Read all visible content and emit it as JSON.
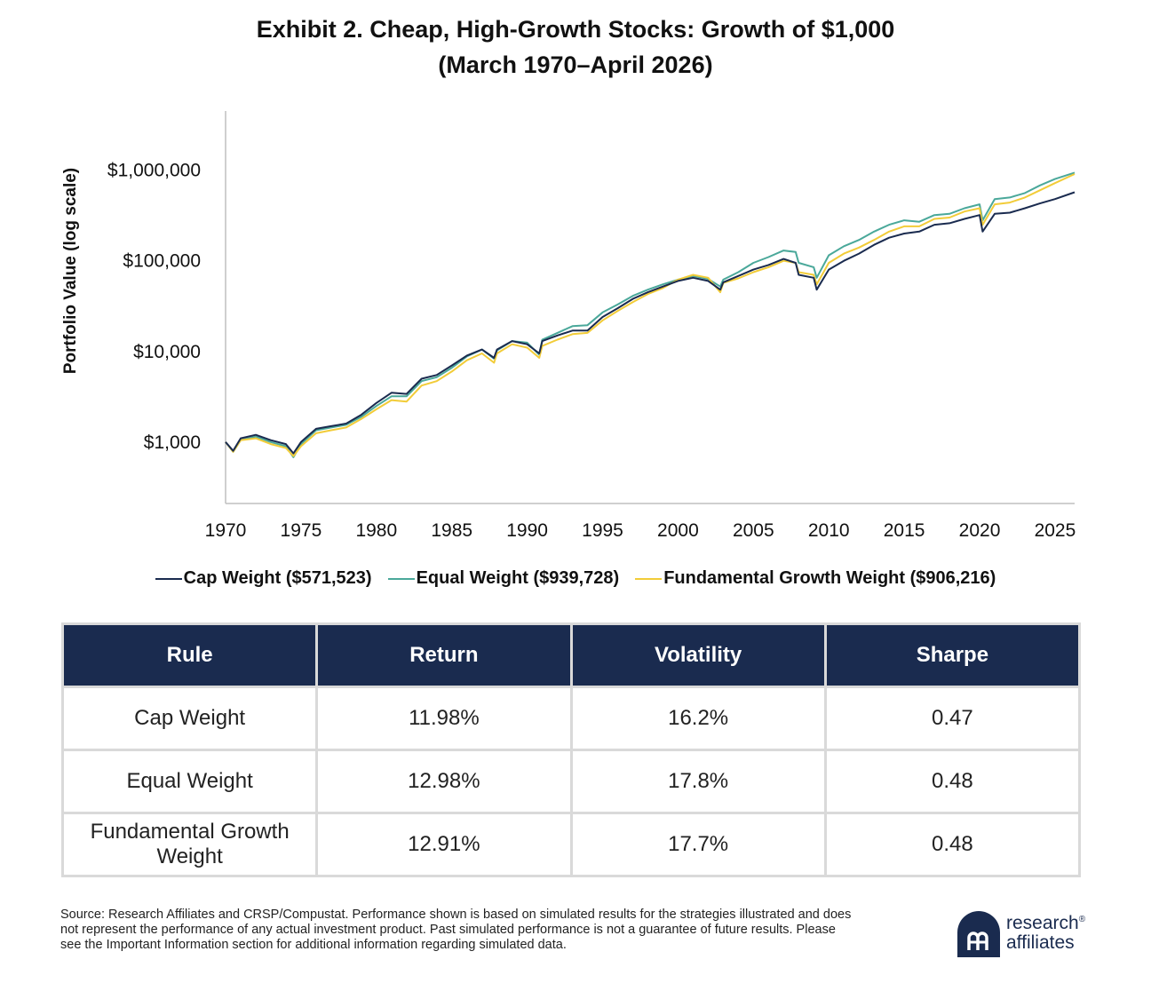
{
  "title_line1": "Exhibit 2. Cheap, High-Growth Stocks: Growth of $1,000",
  "title_line2": "(March 1970–April 2026)",
  "chart_data": {
    "type": "line",
    "title": "Exhibit 2. Cheap, High-Growth Stocks: Growth of $1,000 (March 1970–April 2026)",
    "xlabel": "",
    "ylabel": "Portfolio Value (log scale)",
    "yscale": "log",
    "ylim": [
      210,
      4500000
    ],
    "xlim": [
      1970,
      2026.3
    ],
    "x_ticks": [
      "1970",
      "1975",
      "1980",
      "1985",
      "1990",
      "1995",
      "2000",
      "2005",
      "2010",
      "2015",
      "2020",
      "2025"
    ],
    "y_ticks": [
      {
        "value": 1000,
        "label": "$1,000"
      },
      {
        "value": 10000,
        "label": "$10,000"
      },
      {
        "value": 100000,
        "label": "$100,000"
      },
      {
        "value": 1000000,
        "label": "$1,000,000"
      }
    ],
    "grid": false,
    "legend_position": "bottom",
    "series": [
      {
        "name": "Cap Weight ($571,523)",
        "color": "#1a2b4f",
        "x": [
          1970,
          1970.5,
          1971,
          1972,
          1973,
          1974,
          1974.5,
          1975,
          1976,
          1977,
          1978,
          1979,
          1980,
          1981,
          1982,
          1983,
          1984,
          1985,
          1986,
          1987,
          1987.8,
          1988,
          1989,
          1990,
          1990.8,
          1991,
          1992,
          1993,
          1994,
          1995,
          1996,
          1997,
          1998,
          1999,
          2000,
          2001,
          2002,
          2002.8,
          2003,
          2004,
          2005,
          2006,
          2007,
          2007.8,
          2008,
          2009,
          2009.2,
          2010,
          2011,
          2012,
          2013,
          2014,
          2015,
          2016,
          2017,
          2018,
          2019,
          2020,
          2020.2,
          2021,
          2022,
          2023,
          2024,
          2025,
          2026.3
        ],
        "y": [
          1000,
          800,
          1100,
          1200,
          1050,
          950,
          750,
          1000,
          1400,
          1500,
          1600,
          2000,
          2700,
          3500,
          3400,
          5000,
          5500,
          7000,
          9000,
          10500,
          8500,
          10500,
          13000,
          12000,
          9500,
          13000,
          15000,
          17000,
          17000,
          24000,
          30000,
          38000,
          45000,
          52000,
          60000,
          65000,
          60000,
          48000,
          58000,
          68000,
          80000,
          90000,
          105000,
          95000,
          70000,
          65000,
          48000,
          80000,
          100000,
          120000,
          150000,
          180000,
          200000,
          210000,
          250000,
          260000,
          290000,
          320000,
          210000,
          330000,
          340000,
          380000,
          430000,
          480000,
          571523
        ]
      },
      {
        "name": "Equal Weight ($939,728)",
        "color": "#4aa89a",
        "x": [
          1970,
          1970.5,
          1971,
          1972,
          1973,
          1974,
          1974.5,
          1975,
          1976,
          1977,
          1978,
          1979,
          1980,
          1981,
          1982,
          1983,
          1984,
          1985,
          1986,
          1987,
          1987.8,
          1988,
          1989,
          1990,
          1990.8,
          1991,
          1992,
          1993,
          1994,
          1995,
          1996,
          1997,
          1998,
          1999,
          2000,
          2001,
          2002,
          2002.8,
          2003,
          2004,
          2005,
          2006,
          2007,
          2007.8,
          2008,
          2009,
          2009.2,
          2010,
          2011,
          2012,
          2013,
          2014,
          2015,
          2016,
          2017,
          2018,
          2019,
          2020,
          2020.2,
          2021,
          2022,
          2023,
          2024,
          2025,
          2026.3
        ],
        "y": [
          1000,
          780,
          1050,
          1150,
          1000,
          900,
          680,
          950,
          1350,
          1450,
          1550,
          1900,
          2500,
          3200,
          3200,
          4700,
          5200,
          6600,
          8800,
          10500,
          8300,
          10300,
          13000,
          12500,
          9200,
          13500,
          16000,
          19000,
          19500,
          27000,
          33000,
          41000,
          48000,
          55000,
          62000,
          68000,
          63000,
          52000,
          62000,
          75000,
          95000,
          110000,
          130000,
          125000,
          95000,
          85000,
          65000,
          115000,
          145000,
          170000,
          210000,
          250000,
          280000,
          270000,
          320000,
          330000,
          380000,
          420000,
          280000,
          480000,
          500000,
          560000,
          680000,
          800000,
          939728
        ]
      },
      {
        "name": "Fundamental Growth Weight ($906,216)",
        "color": "#f2cc38",
        "x": [
          1970,
          1970.5,
          1971,
          1972,
          1973,
          1974,
          1974.5,
          1975,
          1976,
          1977,
          1978,
          1979,
          1980,
          1981,
          1982,
          1983,
          1984,
          1985,
          1986,
          1987,
          1987.8,
          1988,
          1989,
          1990,
          1990.8,
          1991,
          1992,
          1993,
          1994,
          1995,
          1996,
          1997,
          1998,
          1999,
          2000,
          2001,
          2002,
          2002.8,
          2003,
          2004,
          2005,
          2006,
          2007,
          2007.8,
          2008,
          2009,
          2009.2,
          2010,
          2011,
          2012,
          2013,
          2014,
          2015,
          2016,
          2017,
          2018,
          2019,
          2020,
          2020.2,
          2021,
          2022,
          2023,
          2024,
          2025,
          2026.3
        ],
        "y": [
          1000,
          780,
          1050,
          1100,
          950,
          860,
          700,
          900,
          1250,
          1350,
          1450,
          1800,
          2300,
          2900,
          2800,
          4200,
          4700,
          6000,
          8000,
          9500,
          7500,
          9500,
          12000,
          11000,
          8500,
          11500,
          13500,
          15500,
          16000,
          22000,
          28000,
          35000,
          43000,
          50000,
          62000,
          70000,
          65000,
          45000,
          57000,
          64000,
          75000,
          85000,
          100000,
          95000,
          75000,
          70000,
          55000,
          95000,
          120000,
          140000,
          170000,
          210000,
          240000,
          240000,
          290000,
          300000,
          350000,
          380000,
          250000,
          420000,
          440000,
          500000,
          600000,
          720000,
          906216
        ]
      }
    ]
  },
  "legend": [
    {
      "label": "Cap Weight ($571,523)",
      "color": "#1a2b4f"
    },
    {
      "label": "Equal Weight ($939,728)",
      "color": "#4aa89a"
    },
    {
      "label": "Fundamental Growth Weight ($906,216)",
      "color": "#f2cc38"
    }
  ],
  "table": {
    "headers": [
      "Rule",
      "Return",
      "Volatility",
      "Sharpe"
    ],
    "rows": [
      [
        "Cap Weight",
        "11.98%",
        "16.2%",
        "0.47"
      ],
      [
        "Equal Weight",
        "12.98%",
        "17.8%",
        "0.48"
      ],
      [
        "Fundamental Growth Weight",
        "12.91%",
        "17.7%",
        "0.48"
      ]
    ]
  },
  "source": "Source: Research Affiliates and CRSP/Compustat. Performance shown is based on simulated results for the strategies illustrated and does not represent the performance of any actual investment product. Past simulated performance is not a guarantee of future results. Please see the Important Information section for additional information regarding simulated data.",
  "logo": {
    "line1": "research",
    "line2": "affiliates",
    "reg": "®",
    "brand_color": "#1a2b4f"
  }
}
